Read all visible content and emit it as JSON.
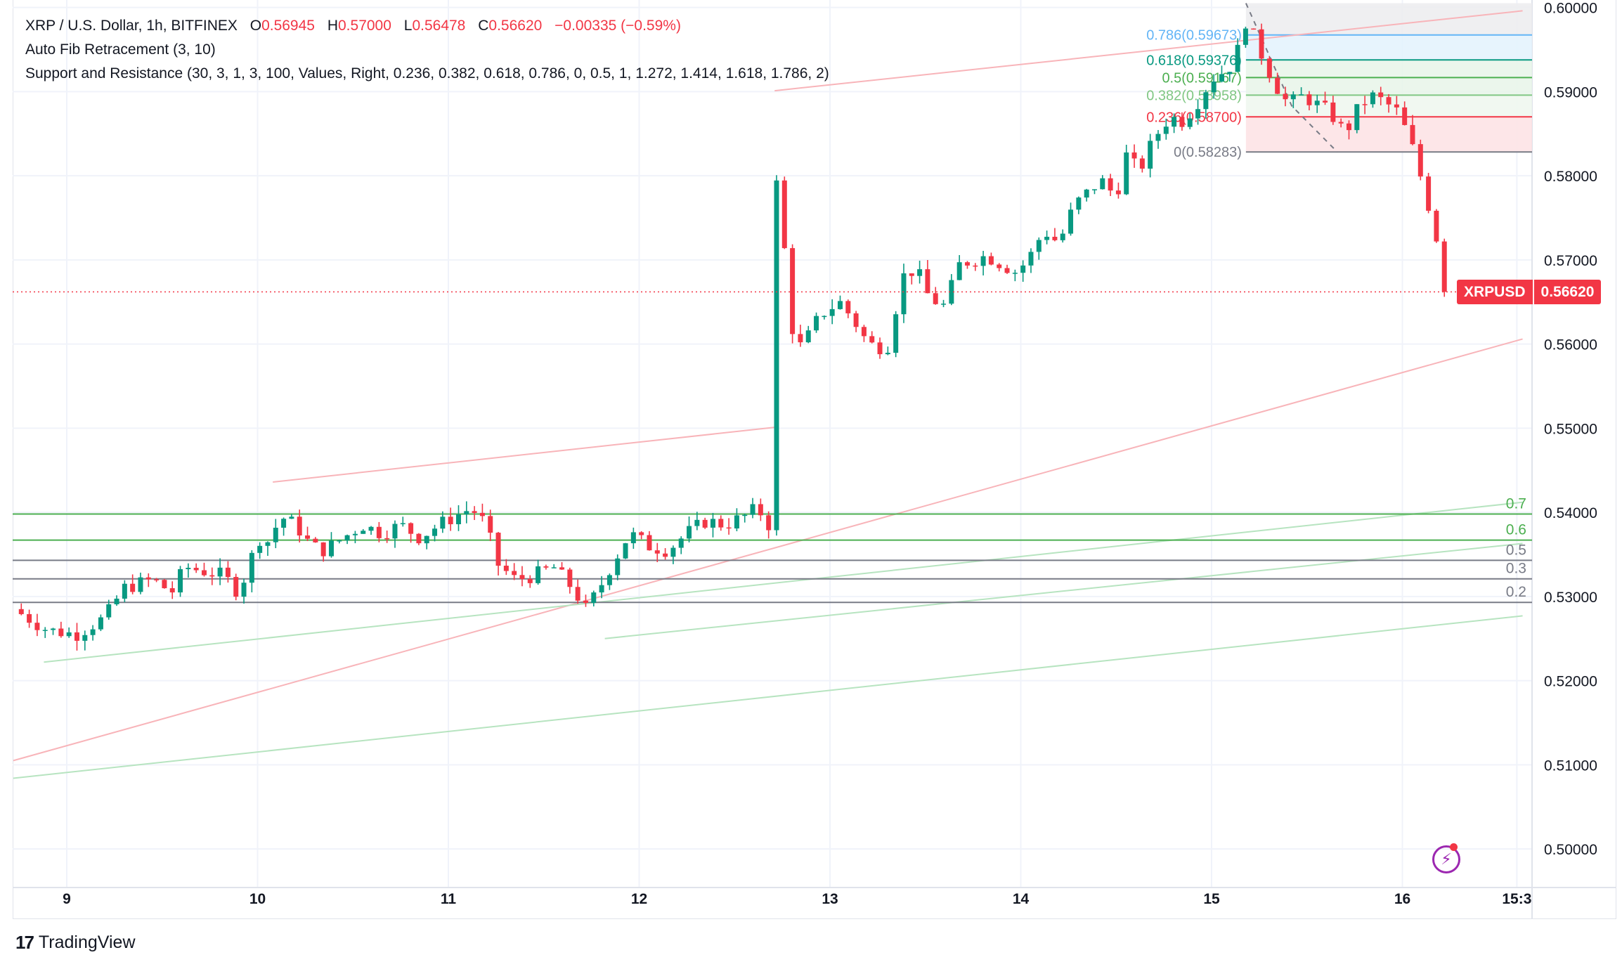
{
  "header": {
    "symbol_line": "XRP / U.S. Dollar, 1h, BITFINEX",
    "ohlc": [
      {
        "k": "O",
        "v": "0.56945"
      },
      {
        "k": "H",
        "v": "0.57000"
      },
      {
        "k": "L",
        "v": "0.56478"
      },
      {
        "k": "C",
        "v": "0.56620"
      }
    ],
    "change": "−0.00335 (−0.59%)",
    "indicator_1": "Auto Fib Retracement (3, 10)",
    "indicator_2": "Support and Resistance (30, 3, 1, 3, 100, Values, Right, 0.236, 0.382, 0.618, 0.786, 0, 0.5, 1, 1.272, 1.414, 1.618, 1.786, 2)"
  },
  "price_tag": {
    "symbol": "XRPUSD",
    "price": "0.56620"
  },
  "footer": {
    "brand": "TradingView",
    "mark": "17"
  },
  "colors": {
    "up": "#089981",
    "down": "#f23645",
    "grid": "#f0f3fa",
    "axis_text": "#131722"
  },
  "chart_data": {
    "type": "candlestick",
    "title": "XRP / U.S. Dollar, 1h, BITFINEX",
    "ylim": [
      0.4955,
      0.6008
    ],
    "y_ticks": [
      "0.60000",
      "0.59000",
      "0.58000",
      "0.57000",
      "0.56000",
      "0.55000",
      "0.54000",
      "0.53000",
      "0.52000",
      "0.51000",
      "0.50000"
    ],
    "x_ticks": [
      {
        "label": "9",
        "t": 0
      },
      {
        "label": "10",
        "t": 1
      },
      {
        "label": "11",
        "t": 2
      },
      {
        "label": "12",
        "t": 3
      },
      {
        "label": "13",
        "t": 4
      },
      {
        "label": "14",
        "t": 5
      },
      {
        "label": "15",
        "t": 6
      },
      {
        "label": "16",
        "t": 7
      },
      {
        "label": "15:3",
        "t": 7.6
      }
    ],
    "last_price": 0.5662,
    "close_path": [
      [
        -0.28,
        0.5285
      ],
      [
        -0.1,
        0.526
      ],
      [
        0.05,
        0.5255
      ],
      [
        0.2,
        0.5275
      ],
      [
        0.3,
        0.531
      ],
      [
        0.45,
        0.532
      ],
      [
        0.55,
        0.5305
      ],
      [
        0.62,
        0.5335
      ],
      [
        0.72,
        0.533
      ],
      [
        0.82,
        0.5325
      ],
      [
        0.9,
        0.5305
      ],
      [
        0.96,
        0.534
      ],
      [
        1.0,
        0.537
      ],
      [
        1.06,
        0.5365
      ],
      [
        1.12,
        0.5395
      ],
      [
        1.2,
        0.5385
      ],
      [
        1.28,
        0.536
      ],
      [
        1.35,
        0.5355
      ],
      [
        1.45,
        0.537
      ],
      [
        1.55,
        0.5385
      ],
      [
        1.65,
        0.5375
      ],
      [
        1.75,
        0.5385
      ],
      [
        1.85,
        0.537
      ],
      [
        1.95,
        0.5385
      ],
      [
        2.03,
        0.5395
      ],
      [
        2.12,
        0.5405
      ],
      [
        2.2,
        0.5385
      ],
      [
        2.25,
        0.534
      ],
      [
        2.35,
        0.532
      ],
      [
        2.45,
        0.5325
      ],
      [
        2.55,
        0.5335
      ],
      [
        2.65,
        0.531
      ],
      [
        2.72,
        0.5285
      ],
      [
        2.78,
        0.5305
      ],
      [
        2.85,
        0.5335
      ],
      [
        2.95,
        0.5375
      ],
      [
        3.05,
        0.536
      ],
      [
        3.15,
        0.5355
      ],
      [
        3.25,
        0.5375
      ],
      [
        3.35,
        0.539
      ],
      [
        3.45,
        0.5385
      ],
      [
        3.55,
        0.5395
      ],
      [
        3.62,
        0.5405
      ],
      [
        3.68,
        0.5385
      ],
      [
        3.7,
        0.554
      ],
      [
        3.72,
        0.579
      ],
      [
        3.75,
        0.574
      ],
      [
        3.8,
        0.562
      ],
      [
        3.85,
        0.5595
      ],
      [
        3.95,
        0.5635
      ],
      [
        4.05,
        0.565
      ],
      [
        4.12,
        0.563
      ],
      [
        4.2,
        0.56
      ],
      [
        4.3,
        0.5595
      ],
      [
        4.38,
        0.568
      ],
      [
        4.45,
        0.569
      ],
      [
        4.52,
        0.5655
      ],
      [
        4.6,
        0.5645
      ],
      [
        4.68,
        0.5695
      ],
      [
        4.75,
        0.57
      ],
      [
        4.82,
        0.5705
      ],
      [
        4.9,
        0.5695
      ],
      [
        4.98,
        0.5685
      ],
      [
        5.05,
        0.5705
      ],
      [
        5.12,
        0.5735
      ],
      [
        5.2,
        0.572
      ],
      [
        5.28,
        0.5765
      ],
      [
        5.35,
        0.578
      ],
      [
        5.42,
        0.5795
      ],
      [
        5.5,
        0.5775
      ],
      [
        5.55,
        0.5825
      ],
      [
        5.62,
        0.5805
      ],
      [
        5.7,
        0.5845
      ],
      [
        5.78,
        0.587
      ],
      [
        5.85,
        0.5865
      ],
      [
        5.92,
        0.5885
      ],
      [
        6.0,
        0.5915
      ],
      [
        6.07,
        0.5925
      ],
      [
        6.12,
        0.5935
      ],
      [
        6.18,
        0.5985
      ],
      [
        6.22,
        0.5965
      ],
      [
        6.28,
        0.5935
      ],
      [
        6.33,
        0.591
      ],
      [
        6.4,
        0.5885
      ],
      [
        6.48,
        0.5895
      ],
      [
        6.55,
        0.5885
      ],
      [
        6.62,
        0.5875
      ],
      [
        6.7,
        0.585
      ],
      [
        6.78,
        0.5885
      ],
      [
        6.85,
        0.5895
      ],
      [
        6.92,
        0.5885
      ],
      [
        6.98,
        0.5875
      ],
      [
        7.05,
        0.5835
      ],
      [
        7.12,
        0.578
      ],
      [
        7.18,
        0.5725
      ],
      [
        7.22,
        0.5715
      ],
      [
        7.25,
        0.5698
      ],
      [
        7.26,
        0.5662
      ]
    ],
    "trend_lines": [
      {
        "color": "#f8b4b9",
        "points": [
          [
            -0.28,
            0.5105
          ],
          [
            7.63,
            0.5606
          ]
        ]
      },
      {
        "color": "#f8b4b9",
        "points": [
          [
            1.08,
            0.5436
          ],
          [
            3.71,
            0.5501
          ]
        ]
      },
      {
        "color": "#f8b4b9",
        "points": [
          [
            3.71,
            0.5901
          ],
          [
            7.63,
            0.5996
          ]
        ]
      },
      {
        "color": "#b7e4c0",
        "points": [
          [
            -0.28,
            0.5084
          ],
          [
            7.63,
            0.5277
          ]
        ]
      },
      {
        "color": "#b7e4c0",
        "points": [
          [
            -0.12,
            0.5222
          ],
          [
            7.63,
            0.5412
          ]
        ]
      },
      {
        "color": "#b7e4c0",
        "points": [
          [
            2.82,
            0.525
          ],
          [
            7.63,
            0.5363
          ]
        ]
      }
    ],
    "horizontal_levels": [
      {
        "price": 0.5398,
        "color": "#4caf50",
        "label": "0.7"
      },
      {
        "price": 0.5367,
        "color": "#4caf50",
        "label": "0.6"
      },
      {
        "price": 0.5343,
        "color": "#787b86",
        "label": "0.5"
      },
      {
        "price": 0.5321,
        "color": "#787b86",
        "label": "0.3"
      },
      {
        "price": 0.5293,
        "color": "#787b86",
        "label": "0.2"
      }
    ],
    "fib_levels": [
      {
        "ratio": "0.786",
        "value": "0.59673",
        "price": 0.59673,
        "color": "#64b5f6"
      },
      {
        "ratio": "0.618",
        "value": "0.59376",
        "price": 0.59376,
        "color": "#089981"
      },
      {
        "ratio": "0.5",
        "value": "0.59167",
        "price": 0.59167,
        "color": "#4caf50"
      },
      {
        "ratio": "0.382",
        "value": "0.58958",
        "price": 0.58958,
        "color": "#81c784"
      },
      {
        "ratio": "0.236",
        "value": "0.58700",
        "price": 0.587,
        "color": "#f23645"
      },
      {
        "ratio": "0",
        "value": "0.58283",
        "price": 0.58283,
        "color": "#787b86"
      }
    ],
    "fib_top_price": 0.6005
  }
}
